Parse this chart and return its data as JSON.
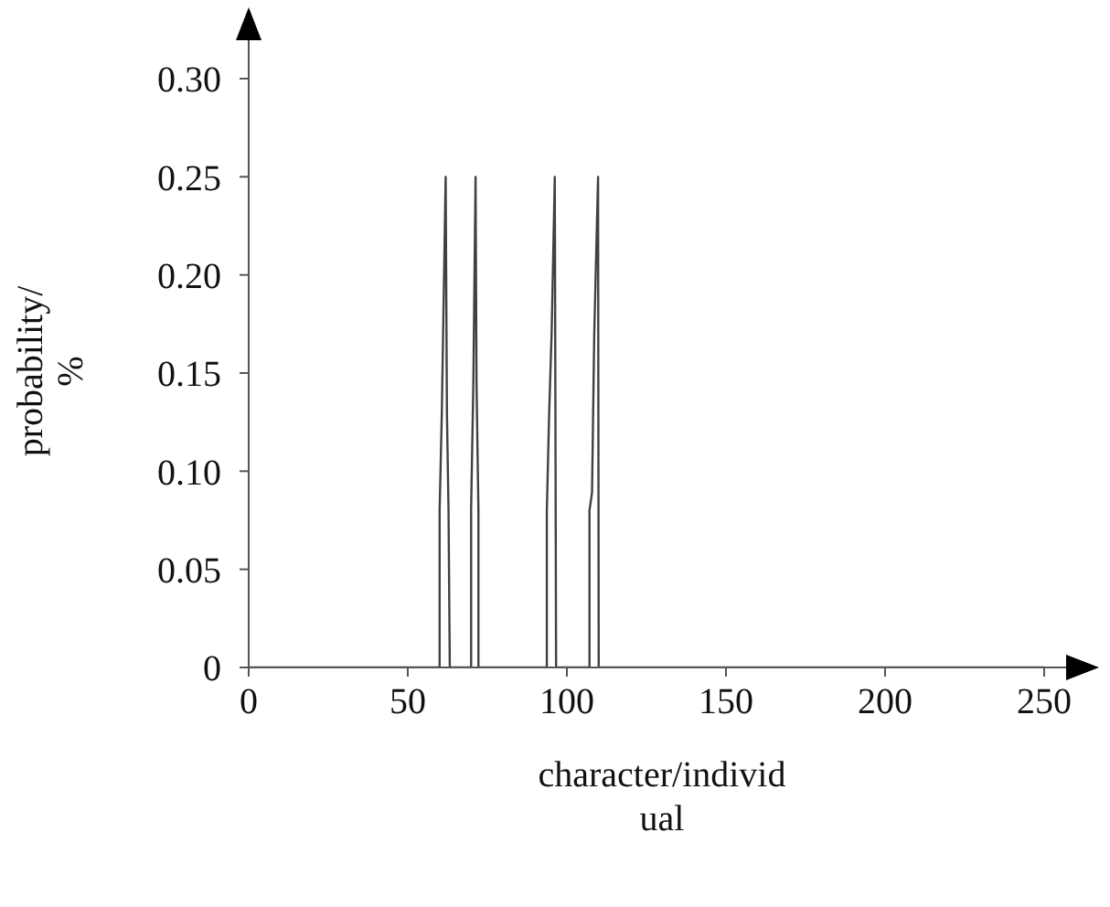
{
  "chart_data": {
    "type": "line",
    "xlabel": "character/individual",
    "ylabel": "probability/%",
    "x": [
      0,
      60,
      60,
      60.7,
      61.9,
      62.3,
      62.8,
      63.2,
      69.9,
      69.9,
      70.6,
      71.3,
      71.6,
      72.2,
      72.2,
      93.7,
      93.7,
      94.4,
      95.2,
      96.2,
      96.4,
      96.6,
      107.1,
      107.1,
      107.9,
      108.6,
      109.8,
      110.0,
      250
    ],
    "values": [
      0,
      0,
      0.08,
      0.13,
      0.25,
      0.13,
      0.08,
      0,
      0,
      0.08,
      0.145,
      0.25,
      0.145,
      0.08,
      0,
      0,
      0.08,
      0.128,
      0.17,
      0.25,
      0.128,
      0,
      0,
      0.08,
      0.089,
      0.17,
      0.25,
      0,
      0
    ],
    "color": "#404040",
    "marker": "none",
    "line_style": "solid",
    "grid": false,
    "legend": false,
    "xlim": [
      0,
      250
    ],
    "xticks": [
      0,
      50,
      100,
      150,
      200,
      250
    ],
    "ylim": [
      0,
      0.3
    ],
    "yticks": [
      0,
      {
        "value": 0.05,
        "label": "0.05"
      },
      {
        "value": 0.1,
        "label": "0.10"
      },
      {
        "value": 0.15,
        "label": "0.15"
      },
      {
        "value": 0.2,
        "label": "0.20"
      },
      {
        "value": 0.25,
        "label": "0.25"
      },
      {
        "value": 0.3,
        "label": "0.30"
      }
    ]
  }
}
